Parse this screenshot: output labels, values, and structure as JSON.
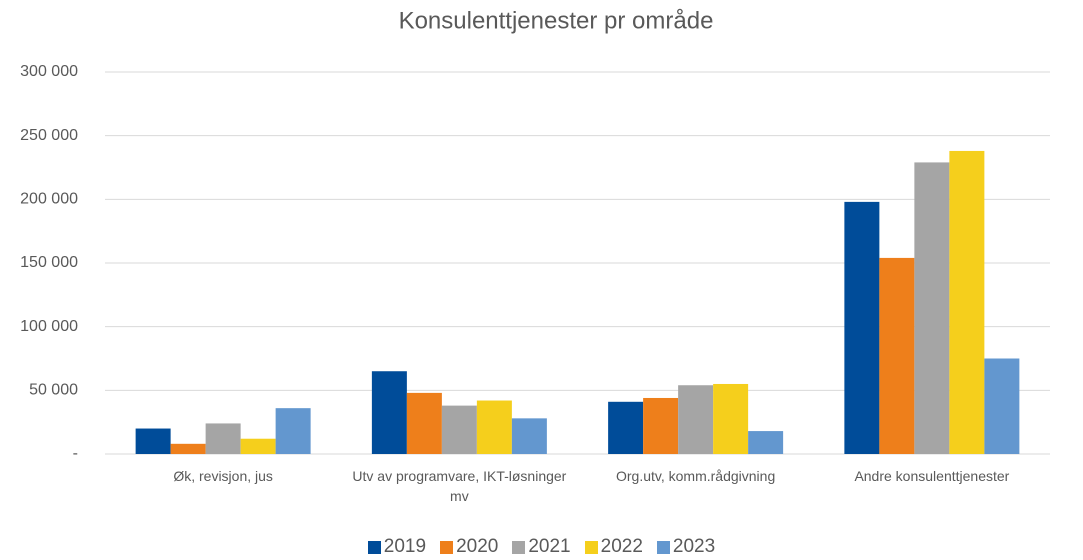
{
  "chart_data": {
    "type": "bar",
    "title": "Konsulenttjenester pr område",
    "categories": [
      "Øk, revisjon, jus",
      "Utv av programvare, IKT-løsninger mv",
      "Org.utv, komm.rådgivning",
      "Andre konsulenttjenester"
    ],
    "series": [
      {
        "name": "2019",
        "color": "#004c99",
        "values": [
          20000,
          65000,
          41000,
          198000
        ]
      },
      {
        "name": "2020",
        "color": "#ee7f1b",
        "values": [
          8000,
          48000,
          44000,
          154000
        ]
      },
      {
        "name": "2021",
        "color": "#a5a5a5",
        "values": [
          24000,
          38000,
          54000,
          229000
        ]
      },
      {
        "name": "2022",
        "color": "#f5cf1c",
        "values": [
          12000,
          42000,
          55000,
          238000
        ]
      },
      {
        "name": "2023",
        "color": "#6397cf",
        "values": [
          36000,
          28000,
          18000,
          75000
        ]
      }
    ],
    "ylim": [
      0,
      300000
    ],
    "yticks": [
      {
        "value": 0,
        "label": "-"
      },
      {
        "value": 50000,
        "label": "50 000"
      },
      {
        "value": 100000,
        "label": "100 000"
      },
      {
        "value": 150000,
        "label": "150 000"
      },
      {
        "value": 200000,
        "label": "200 000"
      },
      {
        "value": 250000,
        "label": "250 000"
      },
      {
        "value": 300000,
        "label": "300 000"
      }
    ],
    "grid": true,
    "legend": "bottom"
  }
}
